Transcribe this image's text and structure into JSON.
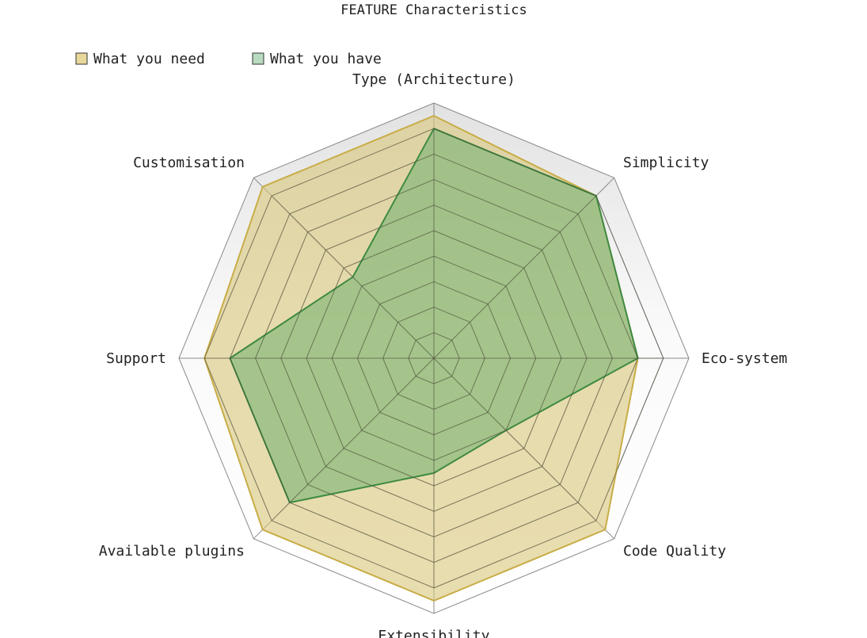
{
  "chart_data": {
    "type": "radar",
    "title": "FEATURE Characteristics",
    "axes": [
      "Type (Architecture)",
      "Simplicity",
      "Eco-system",
      "Code Quality",
      "Extensibility",
      "Available plugins",
      "Support",
      "Customisation"
    ],
    "range": [
      0,
      10
    ],
    "grid_levels": 10,
    "grid": true,
    "legend_position": "top-left",
    "series": [
      {
        "name": "What you need",
        "values": [
          9.5,
          9,
          8,
          9.5,
          9.5,
          9.5,
          9,
          9.5
        ],
        "fill_color": "#d9c779",
        "stroke_color": "#c8ad48",
        "swatch_color": "#e8d99b"
      },
      {
        "name": "What you have",
        "values": [
          9,
          9,
          8,
          4,
          4.5,
          8,
          8,
          4.5
        ],
        "fill_color": "#6fb070",
        "stroke_color": "#3f8a42",
        "swatch_color": "#b9dcc0"
      }
    ]
  }
}
